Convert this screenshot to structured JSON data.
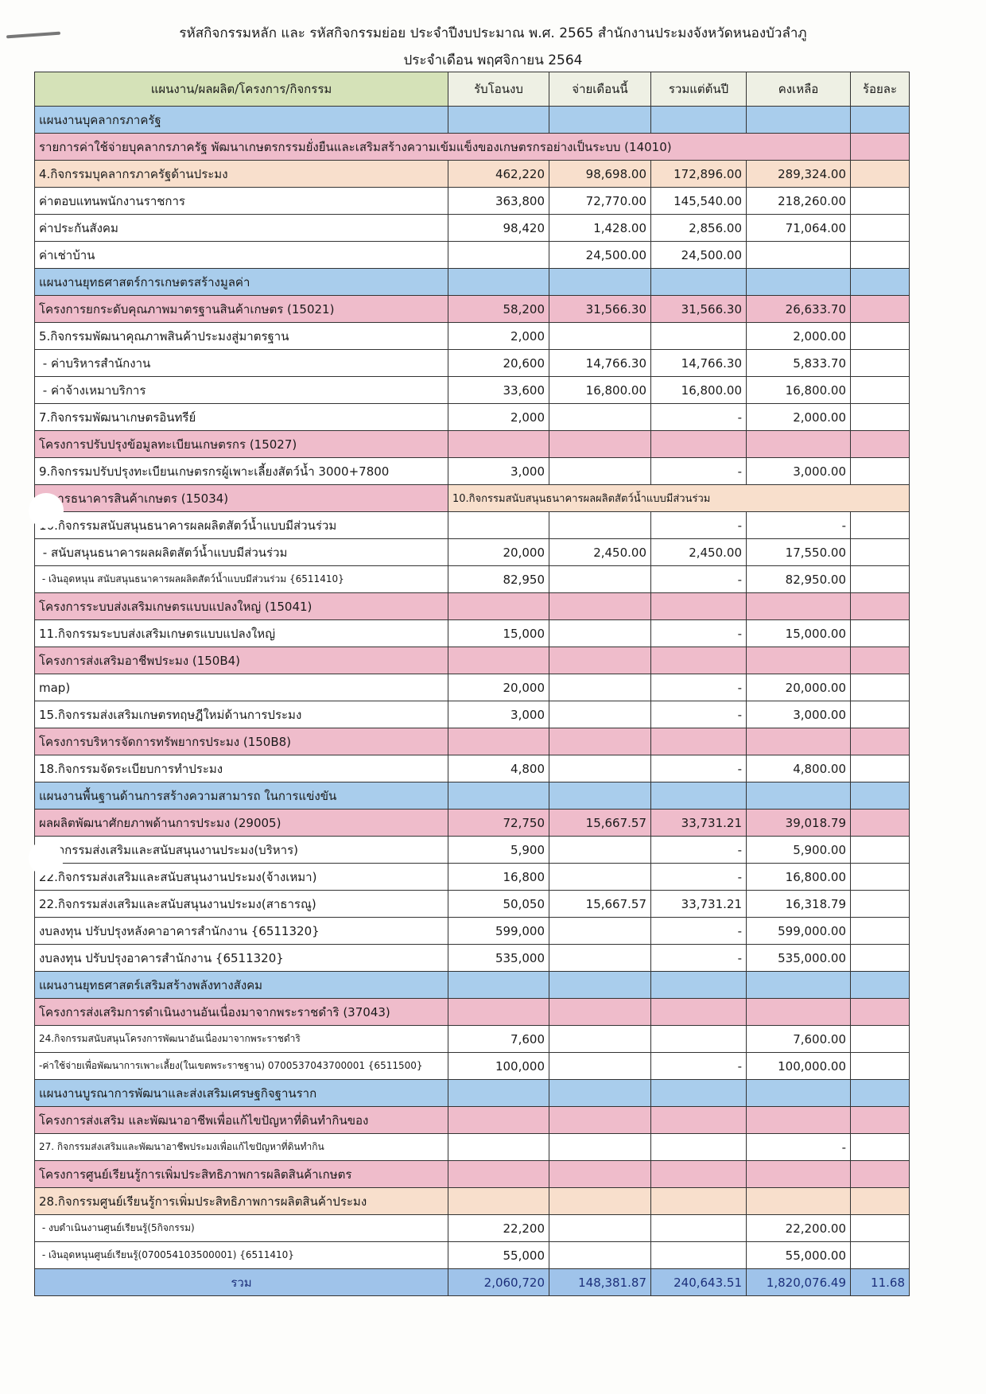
{
  "title_line1": "รหัสกิจกรรมหลัก และ รหัสกิจกรรมย่อย ประจำปีงบประมาณ พ.ศ. 2565 สำนักงานประมงจังหวัดหนองบัวลำภู",
  "title_line2": "ประจำเดือน พฤศจิกายน 2564",
  "columns": [
    "แผนงาน/ผลผลิต/โครงการ/กิจกรรม",
    "รับโอนงบ",
    "จ่ายเดือนนี้",
    "รวมแต่ต้นปี",
    "คงเหลือ",
    "ร้อยละ"
  ],
  "colors": {
    "plan": "#a9cdec",
    "project": "#efbccb",
    "activity": "#f8dfcc",
    "header": "#d5e2b8"
  },
  "rows": [
    {
      "type": "plan",
      "cells": [
        "แผนงานบุคลากรภาครัฐ",
        "",
        "",
        "",
        "",
        ""
      ]
    },
    {
      "type": "project_full",
      "cells": [
        "รายการค่าใช้จ่ายบุคลากรภาครัฐ พัฒนาเกษตรกรรมยั่งยืนและเสริมสร้างความเข้มแข็งของเกษตรกรอย่างเป็นระบบ (14010)",
        ""
      ]
    },
    {
      "type": "activity",
      "cells": [
        "4.กิจกรรมบุคลากรภาครัฐด้านประมง",
        "462,220",
        "98,698.00",
        "172,896.00",
        "289,324.00",
        ""
      ]
    },
    {
      "type": "item",
      "cells": [
        "ค่าตอบแทนพนักงานราชการ",
        "363,800",
        "72,770.00",
        "145,540.00",
        "218,260.00",
        ""
      ]
    },
    {
      "type": "item",
      "cells": [
        "ค่าประกันสังคม",
        "98,420",
        "1,428.00",
        "2,856.00",
        "71,064.00",
        ""
      ]
    },
    {
      "type": "item",
      "cells": [
        "ค่าเช่าบ้าน",
        "",
        "24,500.00",
        "24,500.00",
        "",
        ""
      ]
    },
    {
      "type": "plan",
      "cells": [
        "แผนงานยุทธศาสตร์การเกษตรสร้างมูลค่า",
        "",
        "",
        "",
        "",
        ""
      ]
    },
    {
      "type": "project",
      "cells": [
        "โครงการยกระดับคุณภาพมาตรฐานสินค้าเกษตร (15021)",
        "58,200",
        "31,566.30",
        "31,566.30",
        "26,633.70",
        ""
      ]
    },
    {
      "type": "item",
      "cells": [
        "5.กิจกรรมพัฒนาคุณภาพสินค้าประมงสู่มาตรฐาน",
        "2,000",
        "",
        "",
        "2,000.00",
        ""
      ]
    },
    {
      "type": "item",
      "cells": [
        " - ค่าบริหารสำนักงาน",
        "20,600",
        "14,766.30",
        "14,766.30",
        "5,833.70",
        ""
      ]
    },
    {
      "type": "item",
      "cells": [
        " - ค่าจ้างเหมาบริการ",
        "33,600",
        "16,800.00",
        "16,800.00",
        "16,800.00",
        ""
      ]
    },
    {
      "type": "item",
      "cells": [
        "7.กิจกรรมพัฒนาเกษตรอินทรีย์",
        "2,000",
        "",
        "-",
        "2,000.00",
        ""
      ]
    },
    {
      "type": "project",
      "cells": [
        "โครงการปรับปรุงข้อมูลทะเบียนเกษตรกร (15027)",
        "",
        "",
        "",
        "",
        ""
      ]
    },
    {
      "type": "item",
      "cells": [
        "9.กิจกรรมปรับปรุงทะเบียนเกษตรกรผู้เพาะเลี้ยงสัตว์น้ำ 3000+7800",
        "3,000",
        "",
        "-",
        "3,000.00",
        ""
      ]
    },
    {
      "type": "project_note",
      "cells": [
        "   การธนาคารสินค้าเกษตร (15034)",
        "10.กิจกรรมสนับสนุนธนาคารผลผลิตสัตว์น้ำแบบมีส่วนร่วม"
      ]
    },
    {
      "type": "item",
      "cells": [
        "10.กิจกรรมสนับสนุนธนาคารผลผลิตสัตว์น้ำแบบมีส่วนร่วม",
        "",
        "",
        "-",
        "-",
        ""
      ]
    },
    {
      "type": "item",
      "cells": [
        " - สนับสนุนธนาคารผลผลิตสัตว์น้ำแบบมีส่วนร่วม",
        "20,000",
        "2,450.00",
        "2,450.00",
        "17,550.00",
        ""
      ]
    },
    {
      "type": "item_small",
      "cells": [
        " - เงินอุดหนุน สนับสนุนธนาคารผลผลิตสัตว์น้ำแบบมีส่วนร่วม {6511410}",
        "82,950",
        "",
        "-",
        "82,950.00",
        ""
      ]
    },
    {
      "type": "project",
      "cells": [
        "โครงการระบบส่งเสริมเกษตรแบบแปลงใหญ่ (15041)",
        "",
        "",
        "",
        "",
        ""
      ]
    },
    {
      "type": "item",
      "cells": [
        "11.กิจกรรมระบบส่งเสริมเกษตรแบบแปลงใหญ่",
        "15,000",
        "",
        "-",
        "15,000.00",
        ""
      ]
    },
    {
      "type": "project",
      "cells": [
        "โครงการส่งเสริมอาชีพประมง (150B4)",
        "",
        "",
        "",
        "",
        ""
      ]
    },
    {
      "type": "item",
      "cells": [
        "map)",
        "20,000",
        "",
        "-",
        "20,000.00",
        ""
      ]
    },
    {
      "type": "item",
      "cells": [
        "15.กิจกรรมส่งเสริมเกษตรทฤษฎีใหม่ด้านการประมง",
        "3,000",
        "",
        "-",
        "3,000.00",
        ""
      ]
    },
    {
      "type": "project",
      "cells": [
        "โครงการบริหารจัดการทรัพยากรประมง (150B8)",
        "",
        "",
        "",
        "",
        ""
      ]
    },
    {
      "type": "item",
      "cells": [
        "18.กิจกรรมจัดระเบียบการทำประมง",
        "4,800",
        "",
        "-",
        "4,800.00",
        ""
      ]
    },
    {
      "type": "plan",
      "cells": [
        "แผนงานพื้นฐานด้านการสร้างความสามารถ ในการแข่งขัน",
        "",
        "",
        "",
        "",
        ""
      ]
    },
    {
      "type": "project",
      "cells": [
        "ผลผลิตพัฒนาศักยภาพด้านการประมง (29005)",
        "72,750",
        "15,667.57",
        "33,731.21",
        "39,018.79",
        ""
      ]
    },
    {
      "type": "item",
      "cells": [
        "   กิจกรรมส่งเสริมและสนับสนุนงานประมง(บริหาร)",
        "5,900",
        "",
        "-",
        "5,900.00",
        ""
      ]
    },
    {
      "type": "item",
      "cells": [
        "22.กิจกรรมส่งเสริมและสนับสนุนงานประมง(จ้างเหมา)",
        "16,800",
        "",
        "-",
        "16,800.00",
        ""
      ]
    },
    {
      "type": "item",
      "cells": [
        "22.กิจกรรมส่งเสริมและสนับสนุนงานประมง(สาธารณู)",
        "50,050",
        "15,667.57",
        "33,731.21",
        "16,318.79",
        ""
      ]
    },
    {
      "type": "item",
      "cells": [
        "งบลงทุน ปรับปรุงหลังคาอาคารสำนักงาน {6511320}",
        "599,000",
        "",
        "-",
        "599,000.00",
        ""
      ]
    },
    {
      "type": "item",
      "cells": [
        "งบลงทุน ปรับปรุงอาคารสำนักงาน {6511320}",
        "535,000",
        "",
        "-",
        "535,000.00",
        ""
      ]
    },
    {
      "type": "plan",
      "cells": [
        "แผนงานยุทธศาสตร์เสริมสร้างพลังทางสังคม",
        "",
        "",
        "",
        "",
        ""
      ]
    },
    {
      "type": "project",
      "cells": [
        "โครงการส่งเสริมการดำเนินงานอันเนื่องมาจากพระราชดำริ (37043)",
        "",
        "",
        "",
        "",
        ""
      ]
    },
    {
      "type": "item_small",
      "cells": [
        "24.กิจกรรมสนับสนุนโครงการพัฒนาอันเนื่องมาจากพระราชดำริ",
        "7,600",
        "",
        "",
        "7,600.00",
        ""
      ]
    },
    {
      "type": "item_small",
      "cells": [
        "-ค่าใช้จ่ายเพื่อพัฒนาการเพาะเลี้ยง(ในเขตพระราชฐาน) 0700537043700001 {6511500}",
        "100,000",
        "",
        "-",
        "100,000.00",
        ""
      ]
    },
    {
      "type": "plan",
      "cells": [
        "แผนงานบูรณาการพัฒนาและส่งเสริมเศรษฐกิจฐานราก",
        "",
        "",
        "",
        "",
        ""
      ]
    },
    {
      "type": "project",
      "cells": [
        "โครงการส่งเสริม และพัฒนาอาชีพเพื่อแก้ไขปัญหาที่ดินทำกินของ",
        "",
        "",
        "",
        "",
        ""
      ]
    },
    {
      "type": "item_small",
      "cells": [
        "27. กิจกรรมส่งเสริมและพัฒนาอาชีพประมงเพื่อแก้ไขปัญหาที่ดินทำกิน",
        "",
        "",
        "",
        "-",
        ""
      ]
    },
    {
      "type": "project",
      "cells": [
        "โครงการศูนย์เรียนรู้การเพิ่มประสิทธิภาพการผลิตสินค้าเกษตร",
        "",
        "",
        "",
        "",
        ""
      ]
    },
    {
      "type": "activity",
      "cells": [
        "28.กิจกรรมศูนย์เรียนรู้การเพิ่มประสิทธิภาพการผลิตสินค้าประมง",
        "",
        "",
        "",
        "",
        ""
      ]
    },
    {
      "type": "item_small",
      "cells": [
        " - งบดำเนินงานศูนย์เรียนรู้(5กิจกรรม)",
        "22,200",
        "",
        "",
        "22,200.00",
        ""
      ]
    },
    {
      "type": "item_small",
      "cells": [
        " - เงินอุดหนุนศูนย์เรียนรู้(070054103500001) {6511410}",
        "55,000",
        "",
        "",
        "55,000.00",
        ""
      ]
    },
    {
      "type": "total",
      "cells": [
        "รวม",
        "2,060,720",
        "148,381.87",
        "240,643.51",
        "1,820,076.49",
        "11.68"
      ]
    }
  ]
}
